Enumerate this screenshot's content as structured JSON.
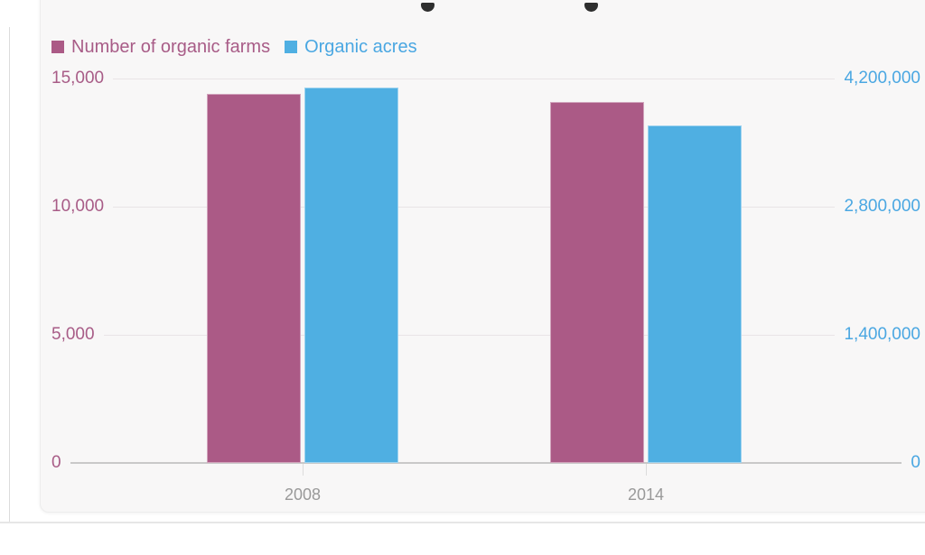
{
  "chart_data": {
    "type": "bar",
    "categories": [
      "2008",
      "2014"
    ],
    "series": [
      {
        "name": "Number of organic farms",
        "axis": "left",
        "color": "#ab5a86",
        "values": [
          14400,
          14100
        ]
      },
      {
        "name": "Organic acres",
        "axis": "right",
        "color": "#4fafe2",
        "values": [
          4100000,
          3690000
        ]
      }
    ],
    "left_axis": {
      "max": 15000,
      "ticks": [
        "0",
        "5,000",
        "10,000",
        "15,000"
      ],
      "label_color": "#a85c87"
    },
    "right_axis": {
      "max": 4200000,
      "ticks": [
        "0",
        "1,400,000",
        "2,800,000",
        "4,200,000"
      ],
      "label_color": "#4aa7e2"
    },
    "x_axis": {
      "tick_labels": [
        "2008",
        "2014"
      ],
      "label_color": "#999999"
    },
    "grid": true,
    "legend_position": "top-left",
    "title_visible": false
  }
}
